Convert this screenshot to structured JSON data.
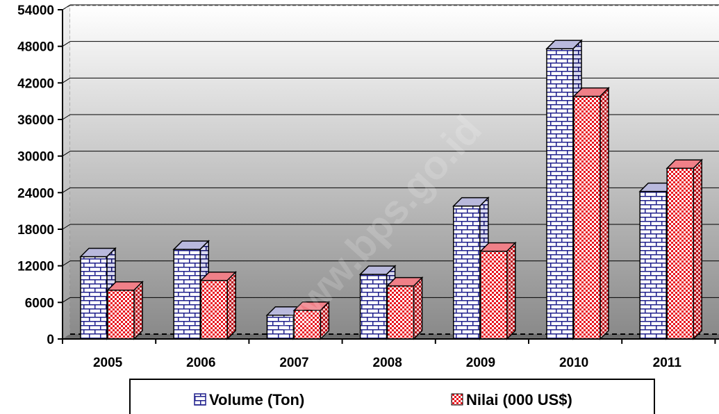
{
  "chart_data": {
    "type": "bar",
    "title": "",
    "xlabel": "",
    "ylabel": "",
    "categories": [
      "2005",
      "2006",
      "2007",
      "2008",
      "2009",
      "2010",
      "2011"
    ],
    "series": [
      {
        "name": "Volume (Ton)",
        "values": [
          13500,
          14700,
          3900,
          10600,
          21800,
          47600,
          24200
        ],
        "color": "#1f1f8c",
        "pattern": "brick"
      },
      {
        "name": "Nilai (000 US$)",
        "values": [
          8000,
          9600,
          4700,
          8700,
          14400,
          39800,
          28000
        ],
        "color": "#e8141e",
        "pattern": "checker"
      }
    ],
    "ylim": [
      0,
      54000
    ],
    "yticks": [
      "0",
      "6000",
      "12000",
      "18000",
      "24000",
      "30000",
      "36000",
      "42000",
      "48000",
      "54000"
    ],
    "grid": true,
    "legend": "bottom"
  }
}
